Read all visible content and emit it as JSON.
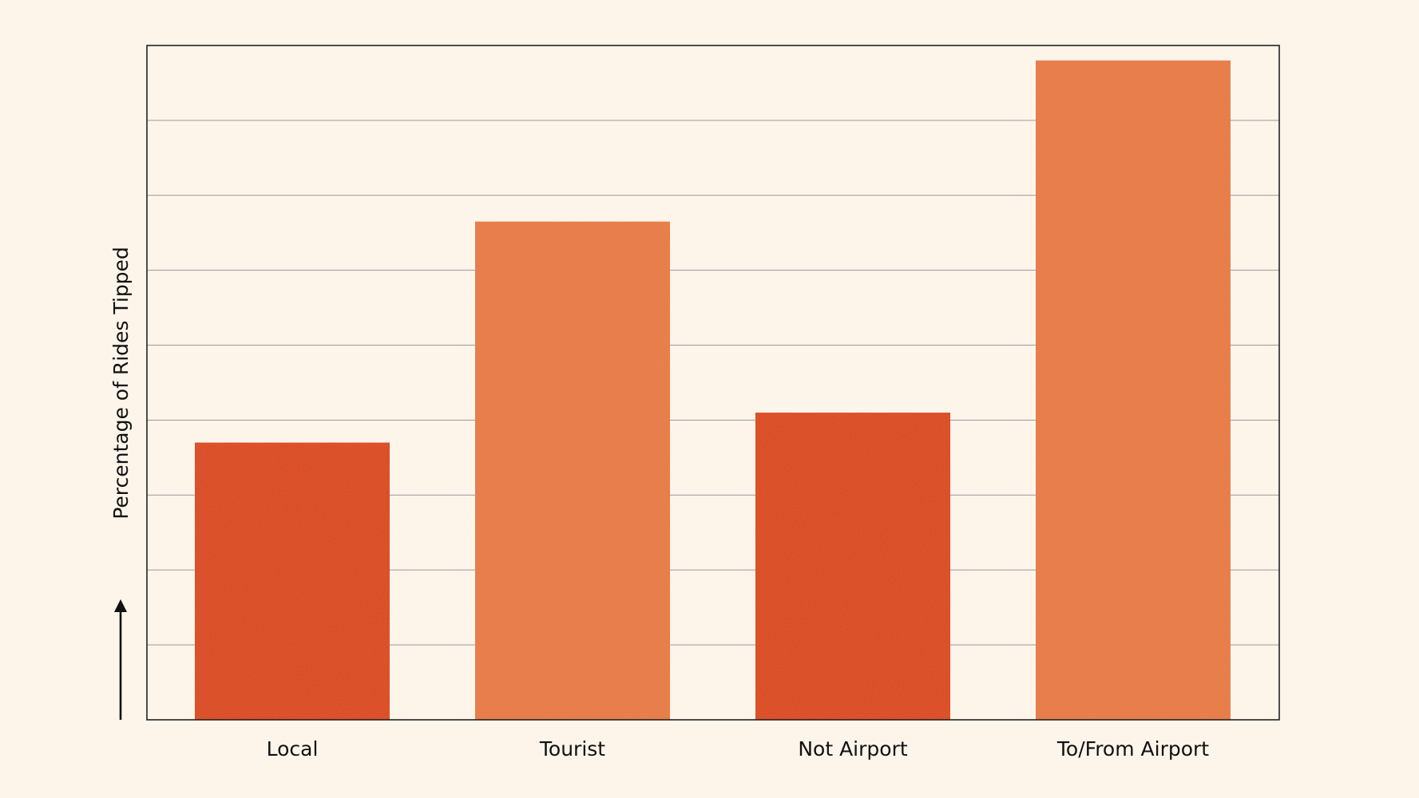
{
  "chart_data": {
    "type": "bar",
    "title": "",
    "xlabel": "",
    "ylabel": "Percentage of Rides Tipped",
    "categories": [
      "Local",
      "Tourist",
      "Not Airport",
      "To/From Airport"
    ],
    "values": [
      3.7,
      6.65,
      4.1,
      8.8
    ],
    "ylim": [
      0,
      9
    ],
    "grid": true,
    "y_tick_labels_shown": false,
    "colors": {
      "background": "#fdf4ea",
      "bar_dark": "#dd4610",
      "bar_light": "#e97a40",
      "axis": "#222222",
      "grid": "#9a9a9a"
    },
    "bar_colors": [
      "#dd4610",
      "#e97a40",
      "#dd4610",
      "#e97a40"
    ]
  }
}
